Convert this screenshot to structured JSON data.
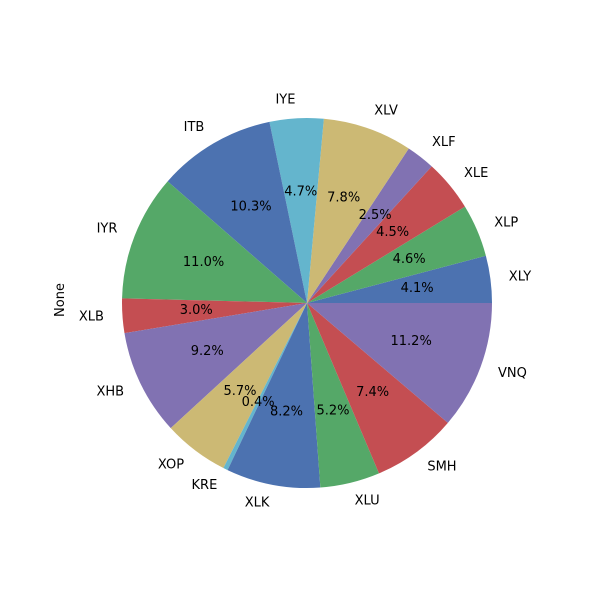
{
  "chart_data": {
    "type": "pie",
    "ylabel": "None",
    "categories": [
      "XLY",
      "XLP",
      "XLE",
      "XLF",
      "XLV",
      "IYE",
      "ITB",
      "IYR",
      "XLB",
      "XHB",
      "XOP",
      "KRE",
      "XLK",
      "XLU",
      "SMH",
      "VNQ"
    ],
    "values": [
      4.1,
      4.6,
      4.5,
      2.5,
      7.8,
      4.7,
      10.3,
      11.0,
      3.0,
      9.2,
      5.7,
      0.4,
      8.2,
      5.2,
      7.4,
      11.2
    ],
    "percent_labels": [
      "4.1%",
      "4.6%",
      "4.5%",
      "2.5%",
      "7.8%",
      "4.7%",
      "10.3%",
      "11.0%",
      "3.0%",
      "9.2%",
      "5.7%",
      "0.4%",
      "8.2%",
      "5.2%",
      "7.4%",
      "11.2%"
    ],
    "colors": [
      "#4c72b0",
      "#55a868",
      "#c44e52",
      "#8172b2",
      "#ccb974",
      "#64b5cd",
      "#4c72b0",
      "#55a868",
      "#c44e52",
      "#8172b2",
      "#ccb974",
      "#64b5cd",
      "#4c72b0",
      "#55a868",
      "#c44e52",
      "#8172b2"
    ],
    "start_angle_deg": 0,
    "direction": "counterclockwise"
  }
}
